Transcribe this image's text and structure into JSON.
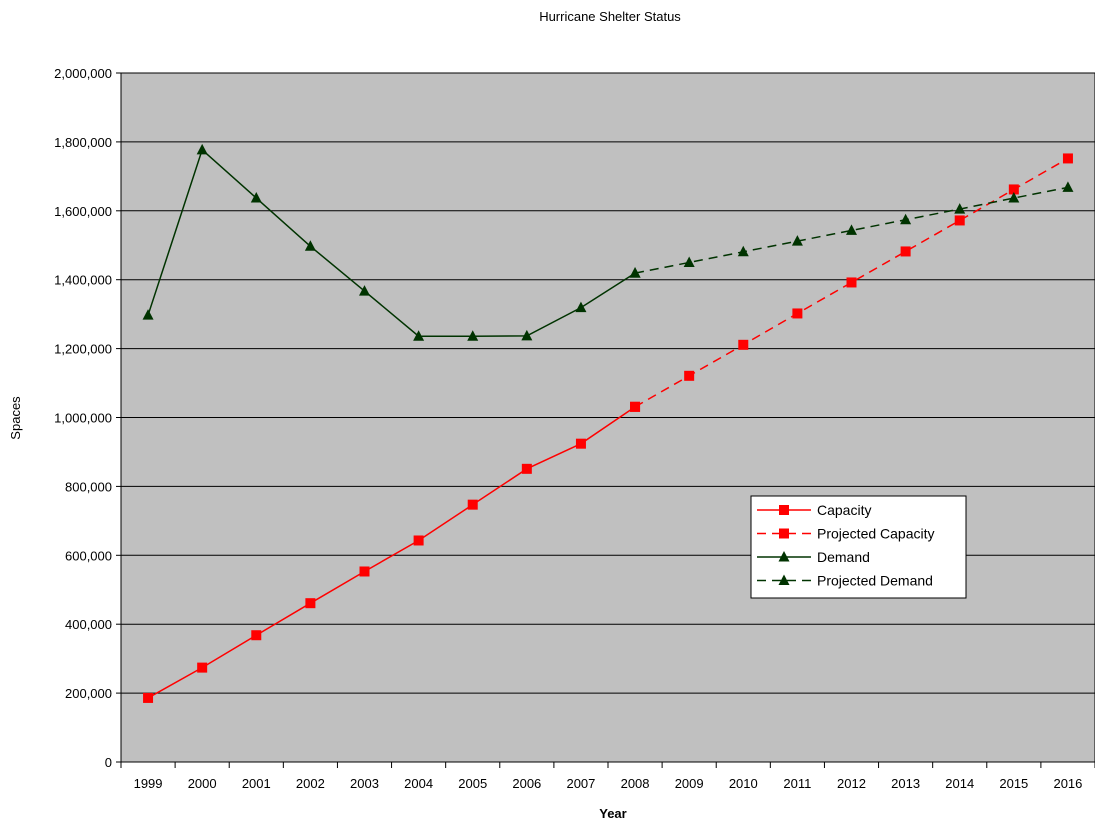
{
  "chart_data": {
    "type": "line",
    "title": "Hurricane Shelter Status",
    "xlabel": "Year",
    "ylabel": "Spaces",
    "categories": [
      "1999",
      "2000",
      "2001",
      "2002",
      "2003",
      "2004",
      "2005",
      "2006",
      "2007",
      "2008",
      "2009",
      "2010",
      "2011",
      "2012",
      "2013",
      "2014",
      "2015",
      "2016"
    ],
    "ylim": [
      0,
      2000000
    ],
    "yticks": [
      0,
      200000,
      400000,
      600000,
      800000,
      1000000,
      1200000,
      1400000,
      1600000,
      1800000,
      2000000
    ],
    "ytick_labels": [
      "0",
      "200,000",
      "400,000",
      "600,000",
      "800,000",
      "1,000,000",
      "1,200,000",
      "1,400,000",
      "1,600,000",
      "1,800,000",
      "2,000,000"
    ],
    "grid": "horizontal",
    "plot_background": "#C0C0C0",
    "legend_position": "right",
    "series": [
      {
        "name": "Capacity",
        "color": "#FF0000",
        "line_style": "solid",
        "marker": "square",
        "values": [
          186000,
          274000,
          368000,
          461000,
          553000,
          643000,
          747000,
          851000,
          924000,
          1031000,
          null,
          null,
          null,
          null,
          null,
          null,
          null,
          null
        ]
      },
      {
        "name": "Projected Capacity",
        "color": "#FF0000",
        "line_style": "dashed",
        "marker": "square",
        "values": [
          null,
          null,
          null,
          null,
          null,
          null,
          null,
          null,
          null,
          1031000,
          1121000,
          1211000,
          1302000,
          1392000,
          1482000,
          1572000,
          1662000,
          1752000
        ]
      },
      {
        "name": "Demand",
        "color": "#003300",
        "line_style": "solid",
        "marker": "triangle",
        "values": [
          1297000,
          1777000,
          1637000,
          1497000,
          1367000,
          1236000,
          1236000,
          1237000,
          1319000,
          1419000,
          null,
          null,
          null,
          null,
          null,
          null,
          null,
          null
        ]
      },
      {
        "name": "Projected Demand",
        "color": "#003300",
        "line_style": "dashed",
        "marker": "triangle",
        "values": [
          null,
          null,
          null,
          null,
          null,
          null,
          null,
          null,
          null,
          1419000,
          1450000,
          1481000,
          1512000,
          1543000,
          1574000,
          1605000,
          1637000,
          1668000
        ]
      }
    ]
  }
}
